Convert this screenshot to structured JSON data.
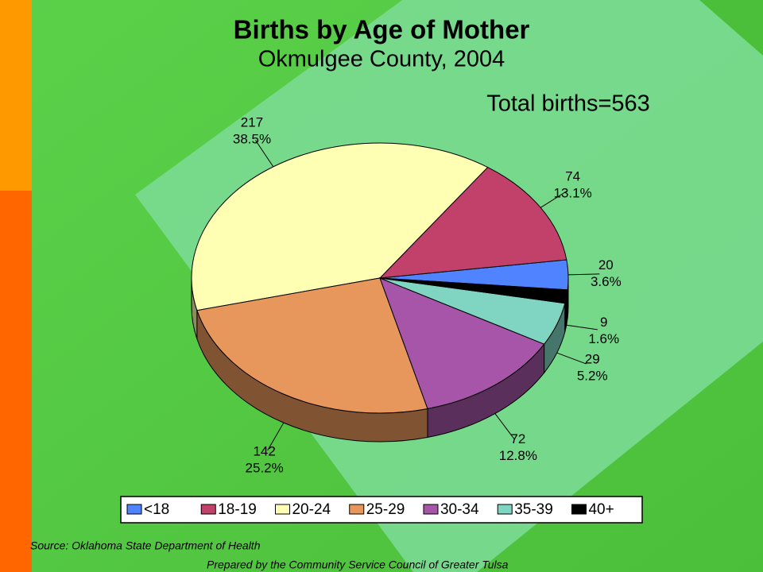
{
  "chart_data": {
    "type": "pie3d",
    "title": "Births by Age of Mother",
    "subtitle": "Okmulgee County, 2004",
    "annotation": "Total births=563",
    "categories": [
      "<18",
      "18-19",
      "20-24",
      "25-29",
      "30-34",
      "35-39",
      "40+"
    ],
    "values": [
      20,
      74,
      217,
      142,
      72,
      29,
      9
    ],
    "percents": [
      3.6,
      13.1,
      38.5,
      25.2,
      12.8,
      5.2,
      1.6
    ],
    "percent_labels": [
      "3.6%",
      "13.1%",
      "38.5%",
      "25.2%",
      "12.8%",
      "5.2%",
      "1.6%"
    ],
    "colors": [
      "#4f83ff",
      "#c2416a",
      "#ffffb4",
      "#e8975c",
      "#a655a8",
      "#7fd4c2",
      "#000000"
    ],
    "legend": "bottom",
    "source": "Source:  Oklahoma State Department of Health",
    "credit": "Prepared by the Community Service Council of Greater Tulsa"
  }
}
